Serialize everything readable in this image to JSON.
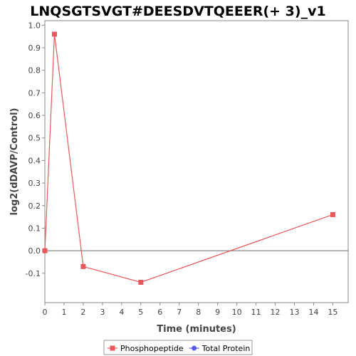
{
  "chart_data": {
    "type": "line",
    "title": "LNQSGTSVGT#DEESDVTQEEER(+ 3)_v1",
    "xlabel": "Time (minutes)",
    "ylabel": "log2(dDAVP/Control)",
    "xlim": [
      0,
      15.8
    ],
    "ylim": [
      -0.23,
      1.02
    ],
    "x_ticks": [
      0,
      1,
      2,
      3,
      4,
      5,
      6,
      7,
      8,
      9,
      10,
      11,
      12,
      13,
      14,
      15
    ],
    "y_ticks": [
      -0.1,
      0.0,
      0.1,
      0.2,
      0.3,
      0.4,
      0.5,
      0.6,
      0.7,
      0.8,
      0.9,
      1.0
    ],
    "y_tick_labels": [
      "-0.1",
      "0.0",
      "0.1",
      "0.2",
      "0.3",
      "0.4",
      "0.5",
      "0.6",
      "0.7",
      "0.8",
      "0.9",
      "1.0"
    ],
    "zero_line": true,
    "grid": false,
    "legend_position": "bottom",
    "series": [
      {
        "name": "Phosphopeptide",
        "color": "#e8575b",
        "marker": "square",
        "x": [
          0,
          0.5,
          2,
          5,
          15
        ],
        "y": [
          0.0,
          0.96,
          -0.07,
          -0.14,
          0.16
        ]
      },
      {
        "name": "Total Protein",
        "color": "#5a5ae8",
        "marker": "circle",
        "x": [],
        "y": []
      }
    ]
  }
}
